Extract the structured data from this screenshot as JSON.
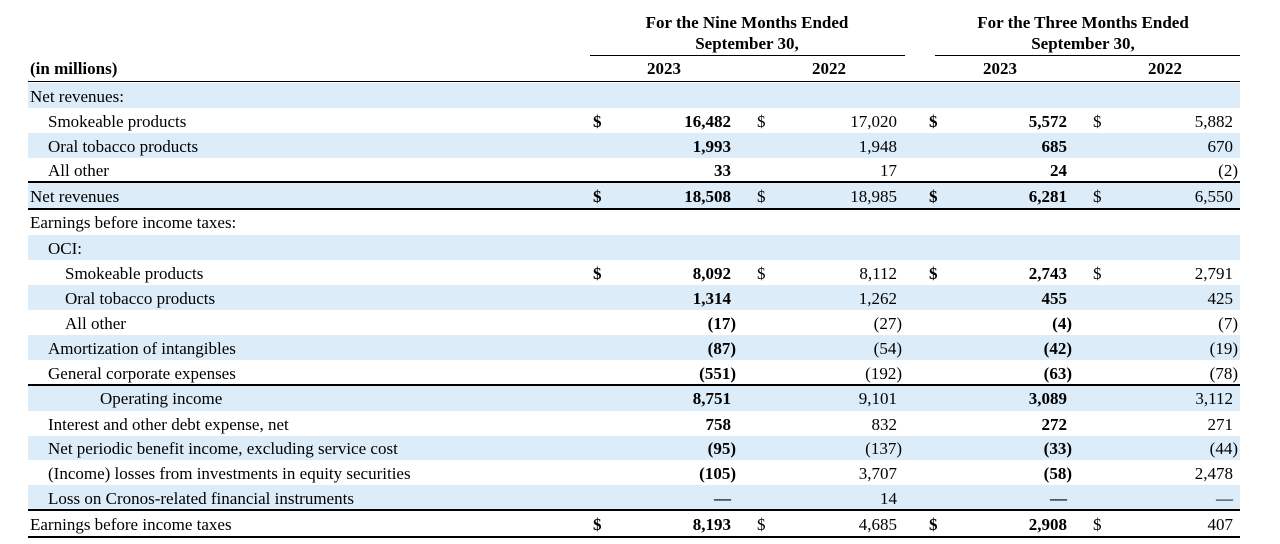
{
  "header": {
    "units": "(in millions)",
    "groups": [
      {
        "title": "For the Nine Months Ended",
        "subtitle": "September 30,",
        "years": [
          "2023",
          "2022"
        ]
      },
      {
        "title": "For the Three Months Ended",
        "subtitle": "September 30,",
        "years": [
          "2023",
          "2022"
        ]
      }
    ]
  },
  "table": {
    "rows": [
      {
        "label": "Net revenues:"
      },
      {
        "label": "Smokeable products",
        "signs": [
          "$",
          "$",
          "$",
          "$"
        ],
        "values": [
          "16,482",
          "17,020",
          "5,572",
          "5,882"
        ]
      },
      {
        "label": "Oral tobacco products",
        "values": [
          "1,993",
          "1,948",
          "685",
          "670"
        ]
      },
      {
        "label": "All other",
        "values": [
          "33",
          "17",
          "24",
          "(2)"
        ]
      },
      {
        "label": "Net revenues",
        "signs": [
          "$",
          "$",
          "$",
          "$"
        ],
        "values": [
          "18,508",
          "18,985",
          "6,281",
          "6,550"
        ]
      },
      {
        "label": "Earnings before income taxes:"
      },
      {
        "label": "OCI:"
      },
      {
        "label": "Smokeable products",
        "signs": [
          "$",
          "$",
          "$",
          "$"
        ],
        "values": [
          "8,092",
          "8,112",
          "2,743",
          "2,791"
        ]
      },
      {
        "label": "Oral tobacco products",
        "values": [
          "1,314",
          "1,262",
          "455",
          "425"
        ]
      },
      {
        "label": "All other",
        "values": [
          "(17)",
          "(27)",
          "(4)",
          "(7)"
        ]
      },
      {
        "label": "Amortization of intangibles",
        "values": [
          "(87)",
          "(54)",
          "(42)",
          "(19)"
        ]
      },
      {
        "label": "General corporate expenses",
        "values": [
          "(551)",
          "(192)",
          "(63)",
          "(78)"
        ]
      },
      {
        "label": "Operating income",
        "values": [
          "8,751",
          "9,101",
          "3,089",
          "3,112"
        ]
      },
      {
        "label": "Interest and other debt expense, net",
        "values": [
          "758",
          "832",
          "272",
          "271"
        ]
      },
      {
        "label": "Net periodic benefit income, excluding service cost",
        "values": [
          "(95)",
          "(137)",
          "(33)",
          "(44)"
        ]
      },
      {
        "label": "(Income) losses from investments in equity securities",
        "values": [
          "(105)",
          "3,707",
          "(58)",
          "2,478"
        ]
      },
      {
        "label": "Loss on Cronos-related financial instruments",
        "values": [
          "—",
          "14",
          "—",
          "—"
        ]
      },
      {
        "label": "Earnings before income taxes",
        "signs": [
          "$",
          "$",
          "$",
          "$"
        ],
        "values": [
          "8,193",
          "4,685",
          "2,908",
          "407"
        ]
      }
    ]
  }
}
